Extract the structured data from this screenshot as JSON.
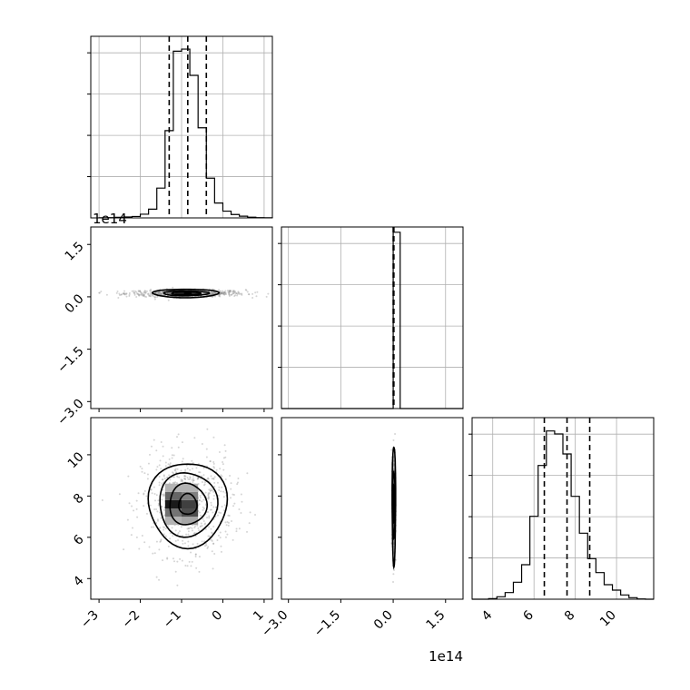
{
  "chart_data": {
    "type": "corner",
    "grid": true,
    "params": [
      {
        "range": [
          -3.2,
          1.2
        ],
        "ticks": [
          -3,
          -2,
          -1,
          0,
          1
        ],
        "tick_labels": [
          "−3",
          "−2",
          "−1",
          "0",
          "1"
        ],
        "offset_text": "1e14",
        "quantiles": [
          -1.3,
          -0.85,
          -0.4
        ]
      },
      {
        "range": [
          -3.2,
          2.0
        ],
        "ticks": [
          -3.0,
          -1.5,
          0.0,
          1.5
        ],
        "tick_labels": [
          "−3.0",
          "−1.5",
          "0.0",
          "1.5"
        ],
        "offset_text": "1e14",
        "quantiles": [
          0.0,
          0.01,
          0.02
        ]
      },
      {
        "range": [
          3.0,
          11.8
        ],
        "ticks": [
          4,
          6,
          8,
          10
        ],
        "tick_labels": [
          "4",
          "6",
          "8",
          "10"
        ],
        "offset_text": "",
        "quantiles": [
          6.5,
          7.6,
          8.7
        ]
      }
    ],
    "histograms": [
      {
        "param": 0,
        "bin_edges": [
          -3.0,
          -2.8,
          -2.6,
          -2.4,
          -2.2,
          -2.0,
          -1.8,
          -1.6,
          -1.4,
          -1.2,
          -1.0,
          -0.8,
          -0.6,
          -0.4,
          -0.2,
          0.0,
          0.2,
          0.4,
          0.6,
          0.8,
          1.0,
          1.2
        ],
        "counts": [
          2,
          4,
          8,
          13,
          20,
          52,
          123,
          420,
          1230,
          2350,
          2380,
          2010,
          1270,
          560,
          210,
          95,
          48,
          24,
          10,
          4,
          2
        ],
        "ylim": [
          0,
          2560
        ]
      },
      {
        "param": 1,
        "bin_edges": [
          -3.2,
          -3.0,
          -2.8,
          -2.6,
          -2.4,
          -2.2,
          -2.0,
          -1.8,
          -1.6,
          -1.4,
          -1.2,
          -1.0,
          -0.8,
          -0.6,
          -0.4,
          -0.2,
          0.0,
          0.2,
          0.4,
          0.6,
          0.8,
          1.0,
          1.2,
          1.4,
          1.6,
          1.8,
          2.0
        ],
        "counts": [
          0,
          0,
          0,
          0,
          0,
          0,
          0,
          0,
          0,
          0,
          0,
          0,
          0,
          0,
          0,
          0,
          10000,
          0,
          0,
          0,
          0,
          0,
          0,
          0,
          0,
          0
        ],
        "ylim": [
          0,
          10300
        ]
      },
      {
        "param": 2,
        "bin_edges": [
          3.0,
          3.4,
          3.8,
          4.2,
          4.6,
          5.0,
          5.4,
          5.8,
          6.2,
          6.6,
          7.0,
          7.4,
          7.8,
          8.2,
          8.6,
          9.0,
          9.4,
          9.8,
          10.2,
          10.6,
          11.0,
          11.4,
          11.8
        ],
        "counts": [
          0,
          0,
          10,
          40,
          110,
          280,
          570,
          1370,
          2210,
          2780,
          2730,
          2400,
          1700,
          1090,
          670,
          440,
          240,
          150,
          70,
          25,
          5,
          0
        ],
        "ylim": [
          0,
          3000
        ]
      }
    ],
    "contours_2d": [
      {
        "x_param": 0,
        "y_param": 1,
        "center": [
          -0.9,
          0.1
        ],
        "density_cells": [
          {
            "x": -1.25,
            "y": 0.1,
            "density": 0.55
          },
          {
            "x": -1.05,
            "y": 0.1,
            "density": 0.85
          },
          {
            "x": -0.85,
            "y": 0.1,
            "density": 1.0
          },
          {
            "x": -0.65,
            "y": 0.1,
            "density": 0.65
          }
        ],
        "contour_half_widths": [
          [
            0.8,
            0.12
          ],
          [
            0.55,
            0.07
          ],
          [
            0.35,
            0.04
          ]
        ],
        "scatter_spread": [
          0.45,
          0.05
        ]
      },
      {
        "x_param": 0,
        "y_param": 2,
        "center": [
          -0.85,
          7.6
        ],
        "density_cells": [
          {
            "x": -1.2,
            "y": 6.8,
            "density": 0.3
          },
          {
            "x": -0.8,
            "y": 6.8,
            "density": 0.35
          },
          {
            "x": -1.2,
            "y": 7.2,
            "density": 0.55
          },
          {
            "x": -0.8,
            "y": 7.2,
            "density": 0.7
          },
          {
            "x": -1.2,
            "y": 7.6,
            "density": 0.9
          },
          {
            "x": -0.8,
            "y": 7.6,
            "density": 0.75
          },
          {
            "x": -1.2,
            "y": 8.0,
            "density": 0.6
          },
          {
            "x": -0.8,
            "y": 8.0,
            "density": 0.5
          },
          {
            "x": -1.2,
            "y": 8.4,
            "density": 0.3
          },
          {
            "x": -0.8,
            "y": 8.4,
            "density": 0.3
          }
        ],
        "contour_half_widths": [
          [
            0.95,
            2.05
          ],
          [
            0.7,
            1.55
          ],
          [
            0.45,
            1.0
          ],
          [
            0.22,
            0.5
          ]
        ],
        "scatter_spread": [
          0.55,
          1.25
        ]
      },
      {
        "x_param": 1,
        "y_param": 2,
        "center": [
          0.02,
          7.6
        ],
        "density_cells": [
          {
            "x": 0.02,
            "y": 7.2,
            "density": 0.6
          },
          {
            "x": 0.02,
            "y": 7.6,
            "density": 0.95
          },
          {
            "x": 0.02,
            "y": 8.0,
            "density": 0.6
          }
        ],
        "contour_half_widths": [
          [
            0.05,
            2.9
          ],
          [
            0.035,
            1.6
          ],
          [
            0.022,
            0.9
          ],
          [
            0.012,
            0.5
          ]
        ],
        "scatter_spread": [
          0.02,
          1.25
        ]
      }
    ]
  }
}
